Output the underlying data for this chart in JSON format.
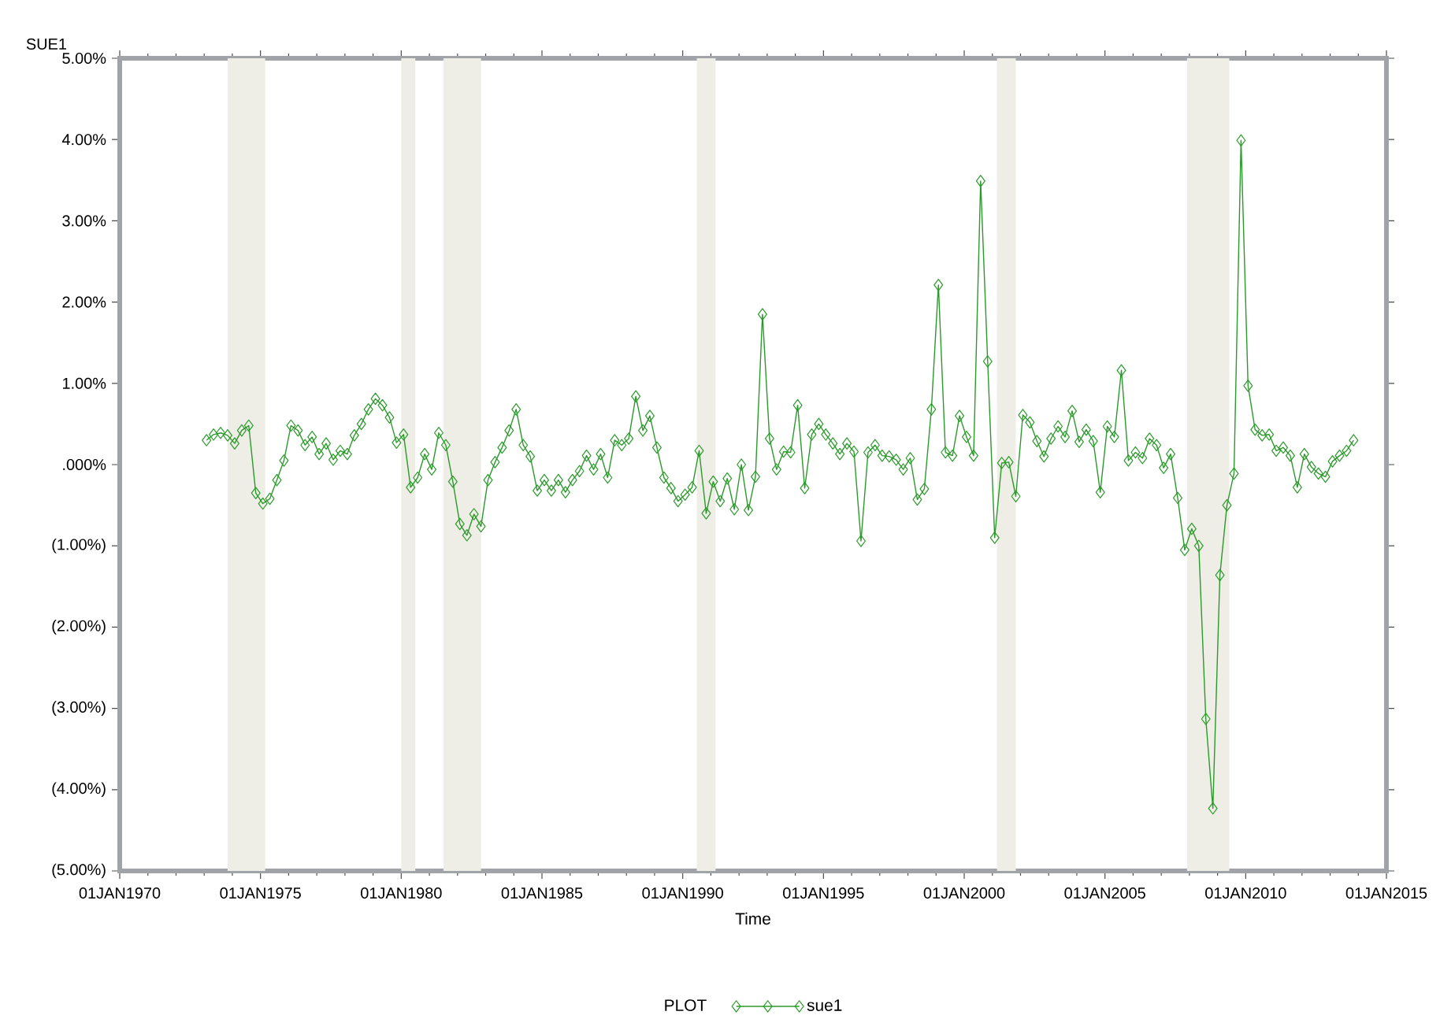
{
  "chart_data": {
    "type": "line",
    "xlabel": "Time",
    "ylabel": "SUE1",
    "legend_title": "PLOT",
    "legend": "bottom",
    "marker": "diamond",
    "xlim": [
      "1970-01-01",
      "2015-01-01"
    ],
    "xticks": [
      {
        "value": "1970-01-01",
        "label": "01JAN1970"
      },
      {
        "value": "1975-01-01",
        "label": "01JAN1975"
      },
      {
        "value": "1980-01-01",
        "label": "01JAN1980"
      },
      {
        "value": "1985-01-01",
        "label": "01JAN1985"
      },
      {
        "value": "1990-01-01",
        "label": "01JAN1990"
      },
      {
        "value": "1995-01-01",
        "label": "01JAN1995"
      },
      {
        "value": "2000-01-01",
        "label": "01JAN2000"
      },
      {
        "value": "2005-01-01",
        "label": "01JAN2005"
      },
      {
        "value": "2010-01-01",
        "label": "01JAN2010"
      },
      {
        "value": "2015-01-01",
        "label": "01JAN2015"
      }
    ],
    "ylim": [
      -5,
      5
    ],
    "yticks": [
      {
        "value": -5,
        "label": "(5.00%)"
      },
      {
        "value": -4,
        "label": "(4.00%)"
      },
      {
        "value": -3,
        "label": "(3.00%)"
      },
      {
        "value": -2,
        "label": "(2.00%)"
      },
      {
        "value": -1,
        "label": "(1.00%)"
      },
      {
        "value": 0,
        "label": ".000%"
      },
      {
        "value": 1,
        "label": "1.00%"
      },
      {
        "value": 2,
        "label": "2.00%"
      },
      {
        "value": 3,
        "label": "3.00%"
      },
      {
        "value": 4,
        "label": "4.00%"
      },
      {
        "value": 5,
        "label": "5.00%"
      }
    ],
    "bands": [
      {
        "axis": "x",
        "from": "1973-11",
        "to": "1975-03",
        "color": "#eeeee6"
      },
      {
        "axis": "x",
        "from": "1980-01",
        "to": "1980-07",
        "color": "#eeeee6"
      },
      {
        "axis": "x",
        "from": "1981-07",
        "to": "1982-11",
        "color": "#eeeee6"
      },
      {
        "axis": "x",
        "from": "1990-07",
        "to": "1991-03",
        "color": "#eeeee6"
      },
      {
        "axis": "x",
        "from": "2001-03",
        "to": "2001-11",
        "color": "#eeeee6"
      },
      {
        "axis": "x",
        "from": "2007-12",
        "to": "2009-06",
        "color": "#eeeee6"
      }
    ],
    "x": [
      "1973-02",
      "1973-05",
      "1973-08",
      "1973-11",
      "1974-02",
      "1974-05",
      "1974-08",
      "1974-11",
      "1975-02",
      "1975-05",
      "1975-08",
      "1975-11",
      "1976-02",
      "1976-05",
      "1976-08",
      "1976-11",
      "1977-02",
      "1977-05",
      "1977-08",
      "1977-11",
      "1978-02",
      "1978-05",
      "1978-08",
      "1978-11",
      "1979-02",
      "1979-05",
      "1979-08",
      "1979-11",
      "1980-02",
      "1980-05",
      "1980-08",
      "1980-11",
      "1981-02",
      "1981-05",
      "1981-08",
      "1981-11",
      "1982-02",
      "1982-05",
      "1982-08",
      "1982-11",
      "1983-02",
      "1983-05",
      "1983-08",
      "1983-11",
      "1984-02",
      "1984-05",
      "1984-08",
      "1984-11",
      "1985-02",
      "1985-05",
      "1985-08",
      "1985-11",
      "1986-02",
      "1986-05",
      "1986-08",
      "1986-11",
      "1987-02",
      "1987-05",
      "1987-08",
      "1987-11",
      "1988-02",
      "1988-05",
      "1988-08",
      "1988-11",
      "1989-02",
      "1989-05",
      "1989-08",
      "1989-11",
      "1990-02",
      "1990-05",
      "1990-08",
      "1990-11",
      "1991-02",
      "1991-05",
      "1991-08",
      "1991-11",
      "1992-02",
      "1992-05",
      "1992-08",
      "1992-11",
      "1993-02",
      "1993-05",
      "1993-08",
      "1993-11",
      "1994-02",
      "1994-05",
      "1994-08",
      "1994-11",
      "1995-02",
      "1995-05",
      "1995-08",
      "1995-11",
      "1996-02",
      "1996-05",
      "1996-08",
      "1996-11",
      "1997-02",
      "1997-05",
      "1997-08",
      "1997-11",
      "1998-02",
      "1998-05",
      "1998-08",
      "1998-11",
      "1999-02",
      "1999-05",
      "1999-08",
      "1999-11",
      "2000-02",
      "2000-05",
      "2000-08",
      "2000-11",
      "2001-02",
      "2001-05",
      "2001-08",
      "2001-11",
      "2002-02",
      "2002-05",
      "2002-08",
      "2002-11",
      "2003-02",
      "2003-05",
      "2003-08",
      "2003-11",
      "2004-02",
      "2004-05",
      "2004-08",
      "2004-11",
      "2005-02",
      "2005-05",
      "2005-08",
      "2005-11",
      "2006-02",
      "2006-05",
      "2006-08",
      "2006-11",
      "2007-02",
      "2007-05",
      "2007-08",
      "2007-11",
      "2008-02",
      "2008-05",
      "2008-08",
      "2008-11",
      "2009-02",
      "2009-05",
      "2009-08",
      "2009-11",
      "2010-02",
      "2010-05",
      "2010-08",
      "2010-11",
      "2011-02",
      "2011-05",
      "2011-08",
      "2011-11",
      "2012-02",
      "2012-05",
      "2012-08",
      "2012-11",
      "2013-02",
      "2013-05",
      "2013-08",
      "2013-11"
    ],
    "series": [
      {
        "name": "sue1",
        "color": "#2a9a2a",
        "values": [
          0.3,
          0.37,
          0.39,
          0.36,
          0.26,
          0.42,
          0.48,
          -0.35,
          -0.48,
          -0.42,
          -0.19,
          0.05,
          0.48,
          0.42,
          0.24,
          0.34,
          0.13,
          0.26,
          0.06,
          0.17,
          0.13,
          0.36,
          0.5,
          0.68,
          0.81,
          0.73,
          0.58,
          0.27,
          0.37,
          -0.28,
          -0.16,
          0.13,
          -0.06,
          0.39,
          0.24,
          -0.21,
          -0.73,
          -0.87,
          -0.61,
          -0.76,
          -0.19,
          0.03,
          0.21,
          0.42,
          0.68,
          0.24,
          0.1,
          -0.32,
          -0.19,
          -0.32,
          -0.19,
          -0.34,
          -0.19,
          -0.08,
          0.11,
          -0.06,
          0.13,
          -0.16,
          0.3,
          0.24,
          0.32,
          0.84,
          0.42,
          0.6,
          0.21,
          -0.16,
          -0.29,
          -0.45,
          -0.37,
          -0.28,
          0.17,
          -0.6,
          -0.21,
          -0.45,
          -0.17,
          -0.55,
          0.0,
          -0.56,
          -0.15,
          1.85,
          0.32,
          -0.06,
          0.16,
          0.15,
          0.73,
          -0.29,
          0.37,
          0.5,
          0.37,
          0.26,
          0.13,
          0.26,
          0.16,
          -0.94,
          0.15,
          0.24,
          0.11,
          0.1,
          0.06,
          -0.06,
          0.08,
          -0.43,
          -0.3,
          0.68,
          2.21,
          0.15,
          0.11,
          0.6,
          0.34,
          0.11,
          3.49,
          1.27,
          -0.9,
          0.02,
          0.03,
          -0.39,
          0.61,
          0.52,
          0.29,
          0.1,
          0.32,
          0.47,
          0.34,
          0.66,
          0.28,
          0.43,
          0.29,
          -0.34,
          0.47,
          0.34,
          1.16,
          0.05,
          0.15,
          0.08,
          0.32,
          0.24,
          -0.04,
          0.13,
          -0.41,
          -1.05,
          -0.79,
          -1.0,
          -3.13,
          -4.23,
          -1.36,
          -0.5,
          -0.11,
          3.99,
          0.97,
          0.43,
          0.36,
          0.37,
          0.17,
          0.21,
          0.11,
          -0.28,
          0.13,
          -0.03,
          -0.11,
          -0.15,
          0.04,
          0.11,
          0.17,
          0.3
        ]
      }
    ]
  }
}
